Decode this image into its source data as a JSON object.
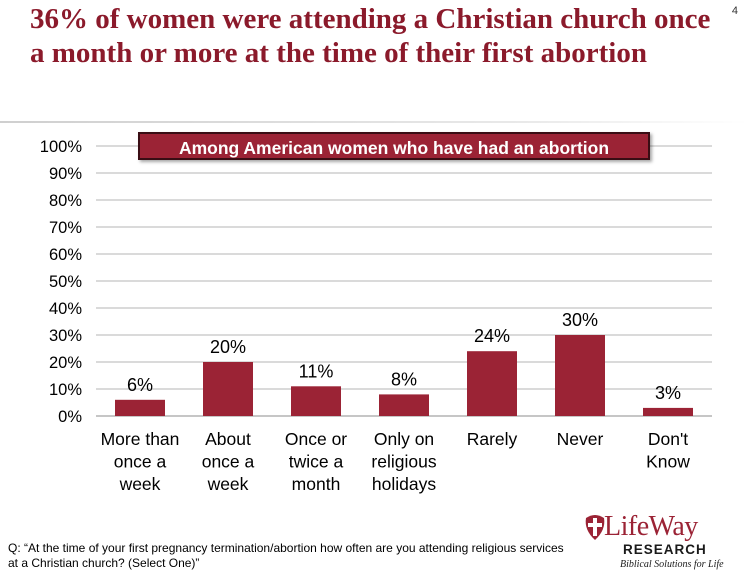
{
  "slide": {
    "title": "36% of women were attending a Christian church once a month or more at the time of their first abortion",
    "page_number": "4",
    "subtitle": "Among American women who have had an abortion",
    "question": "Q: “At the time of your first pregnancy termination/abortion how often are you attending religious services at a Christian church? (Select One)”"
  },
  "logo": {
    "brand": "LifeWay",
    "sub": "RESEARCH",
    "tagline": "Biblical Solutions for Life"
  },
  "colors": {
    "bar": "#9b2335",
    "title": "#8b1a2b",
    "grid": "#b5b5b5"
  },
  "chart_data": {
    "type": "bar",
    "categories": [
      [
        "More than",
        "once a",
        "week"
      ],
      [
        "About",
        "once a",
        "week"
      ],
      [
        "Once or",
        "twice a",
        "month"
      ],
      [
        "Only on",
        "religious",
        "holidays"
      ],
      [
        "Rarely"
      ],
      [
        "Never"
      ],
      [
        "Don't",
        "Know"
      ]
    ],
    "values": [
      6,
      20,
      11,
      8,
      24,
      30,
      3
    ],
    "value_labels": [
      "6%",
      "20%",
      "11%",
      "8%",
      "24%",
      "30%",
      "3%"
    ],
    "y_ticks": [
      "0%",
      "10%",
      "20%",
      "30%",
      "40%",
      "50%",
      "60%",
      "70%",
      "80%",
      "90%",
      "100%"
    ],
    "ylim": [
      0,
      100
    ],
    "grid": true
  }
}
